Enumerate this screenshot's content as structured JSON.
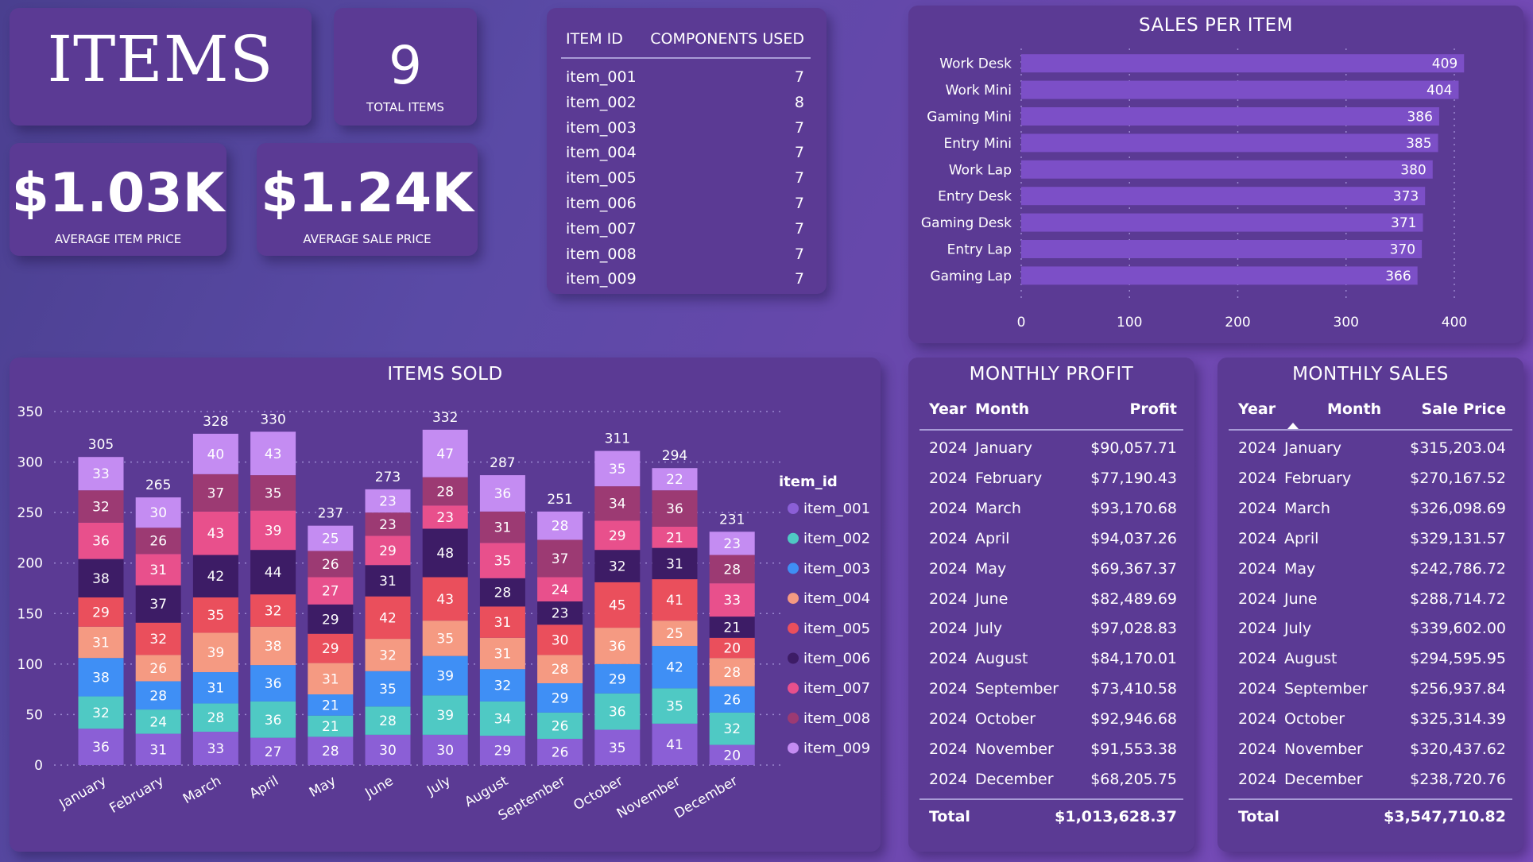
{
  "header": {
    "title": "ITEMS"
  },
  "kpis": {
    "total_items": {
      "value": "9",
      "label": "TOTAL ITEMS"
    },
    "avg_item_price": {
      "value": "$1.03K",
      "label": "AVERAGE ITEM PRICE"
    },
    "avg_sale_price": {
      "value": "$1.24K",
      "label": "AVERAGE SALE PRICE"
    }
  },
  "components_table": {
    "headers": [
      "ITEM ID",
      "COMPONENTS USED"
    ],
    "rows": [
      [
        "item_001",
        "7"
      ],
      [
        "item_002",
        "8"
      ],
      [
        "item_003",
        "7"
      ],
      [
        "item_004",
        "7"
      ],
      [
        "item_005",
        "7"
      ],
      [
        "item_006",
        "7"
      ],
      [
        "item_007",
        "7"
      ],
      [
        "item_008",
        "7"
      ],
      [
        "item_009",
        "7"
      ]
    ]
  },
  "monthly_profit": {
    "title": "MONTHLY PROFIT",
    "headers": [
      "Year",
      "Month",
      "Profit"
    ],
    "rows": [
      [
        "2024",
        "January",
        "$90,057.71"
      ],
      [
        "2024",
        "February",
        "$77,190.43"
      ],
      [
        "2024",
        "March",
        "$93,170.68"
      ],
      [
        "2024",
        "April",
        "$94,037.26"
      ],
      [
        "2024",
        "May",
        "$69,367.37"
      ],
      [
        "2024",
        "June",
        "$82,489.69"
      ],
      [
        "2024",
        "July",
        "$97,028.83"
      ],
      [
        "2024",
        "August",
        "$84,170.01"
      ],
      [
        "2024",
        "September",
        "$73,410.58"
      ],
      [
        "2024",
        "October",
        "$92,946.68"
      ],
      [
        "2024",
        "November",
        "$91,553.38"
      ],
      [
        "2024",
        "December",
        "$68,205.75"
      ]
    ],
    "total_label": "Total",
    "total_value": "$1,013,628.37"
  },
  "monthly_sales": {
    "title": "MONTHLY SALES",
    "headers": [
      "Year",
      "Month",
      "Sale Price"
    ],
    "sort_icon": "sort-ascending-icon",
    "rows": [
      [
        "2024",
        "January",
        "$315,203.04"
      ],
      [
        "2024",
        "February",
        "$270,167.52"
      ],
      [
        "2024",
        "March",
        "$326,098.69"
      ],
      [
        "2024",
        "April",
        "$329,131.57"
      ],
      [
        "2024",
        "May",
        "$242,786.72"
      ],
      [
        "2024",
        "June",
        "$288,714.72"
      ],
      [
        "2024",
        "July",
        "$339,602.00"
      ],
      [
        "2024",
        "August",
        "$294,595.95"
      ],
      [
        "2024",
        "September",
        "$256,937.84"
      ],
      [
        "2024",
        "October",
        "$325,314.39"
      ],
      [
        "2024",
        "November",
        "$320,437.62"
      ],
      [
        "2024",
        "December",
        "$238,720.76"
      ]
    ],
    "total_label": "Total",
    "total_value": "$3,547,710.82"
  },
  "chart_data": [
    {
      "type": "bar",
      "orientation": "horizontal",
      "title": "SALES PER ITEM",
      "categories": [
        "Work Desk",
        "Work Mini",
        "Gaming Mini",
        "Entry Mini",
        "Work Lap",
        "Entry Desk",
        "Gaming Desk",
        "Entry Lap",
        "Gaming Lap"
      ],
      "values": [
        409,
        404,
        386,
        385,
        380,
        373,
        371,
        370,
        366
      ],
      "xlim": [
        0,
        400
      ],
      "ticks": [
        0,
        100,
        200,
        300,
        400
      ],
      "grid": true,
      "color": "#7c4fc7"
    },
    {
      "type": "bar",
      "stacked": true,
      "title": "ITEMS SOLD",
      "categories": [
        "January",
        "February",
        "March",
        "April",
        "May",
        "June",
        "July",
        "August",
        "September",
        "October",
        "November",
        "December"
      ],
      "totals": [
        305,
        265,
        328,
        330,
        237,
        273,
        332,
        287,
        251,
        311,
        294,
        231
      ],
      "ylim": [
        0,
        350
      ],
      "ticks": [
        0,
        50,
        100,
        150,
        200,
        250,
        300,
        350
      ],
      "legend_title": "item_id",
      "legend_position": "right",
      "grid": true,
      "series": [
        {
          "name": "item_001",
          "color": "#8b5fd6",
          "values": [
            36,
            31,
            33,
            27,
            28,
            30,
            30,
            29,
            26,
            35,
            41,
            20
          ]
        },
        {
          "name": "item_002",
          "color": "#4fc9c4",
          "values": [
            32,
            24,
            28,
            36,
            21,
            28,
            39,
            34,
            26,
            36,
            35,
            32
          ]
        },
        {
          "name": "item_003",
          "color": "#3f8ff5",
          "values": [
            38,
            28,
            31,
            36,
            21,
            35,
            39,
            32,
            29,
            29,
            42,
            26
          ]
        },
        {
          "name": "item_004",
          "color": "#f59a82",
          "values": [
            31,
            26,
            39,
            38,
            31,
            32,
            35,
            31,
            28,
            36,
            25,
            28
          ]
        },
        {
          "name": "item_005",
          "color": "#ea4f5c",
          "values": [
            29,
            32,
            35,
            32,
            29,
            42,
            43,
            31,
            30,
            45,
            41,
            20
          ]
        },
        {
          "name": "item_006",
          "color": "#3d1c66",
          "values": [
            38,
            37,
            42,
            44,
            29,
            31,
            48,
            28,
            23,
            32,
            31,
            21
          ]
        },
        {
          "name": "item_007",
          "color": "#e8508c",
          "values": [
            36,
            31,
            43,
            39,
            27,
            29,
            23,
            35,
            24,
            29,
            21,
            33
          ]
        },
        {
          "name": "item_008",
          "color": "#9c3a73",
          "values": [
            32,
            26,
            37,
            35,
            26,
            23,
            28,
            31,
            37,
            34,
            36,
            28
          ]
        },
        {
          "name": "item_009",
          "color": "#c48cf2",
          "values": [
            33,
            30,
            40,
            43,
            25,
            23,
            47,
            36,
            28,
            35,
            22,
            23
          ]
        }
      ]
    }
  ]
}
